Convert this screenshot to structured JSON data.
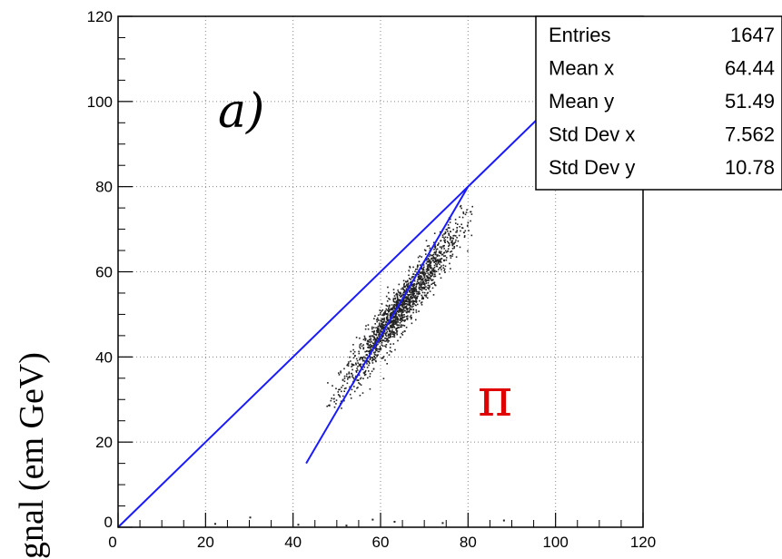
{
  "chart_data": {
    "type": "scatter",
    "title": "",
    "xlabel": "",
    "ylabel": "gnal (em GeV)",
    "xlim": [
      0,
      120
    ],
    "ylim": [
      0,
      120
    ],
    "x_ticks": [
      0,
      20,
      40,
      60,
      80,
      100,
      120
    ],
    "y_ticks": [
      0,
      20,
      40,
      60,
      80,
      100,
      120
    ],
    "grid": true,
    "panel_label": "a)",
    "particle_label": "π",
    "colors": {
      "lines": "#1a1aff",
      "points": "#222222",
      "particle": "#e00000"
    },
    "stats_box": [
      {
        "label": "Entries",
        "value": "1647"
      },
      {
        "label": "Mean x",
        "value": "64.44"
      },
      {
        "label": "Mean y",
        "value": "51.49"
      },
      {
        "label": "Std Dev x",
        "value": "7.562"
      },
      {
        "label": "Std Dev y",
        "value": "10.78"
      }
    ],
    "lines": [
      {
        "name": "",
        "points": [
          [
            0,
            0
          ],
          [
            120,
            120
          ]
        ]
      },
      {
        "name": "",
        "points": [
          [
            43,
            15
          ],
          [
            80,
            80
          ]
        ]
      }
    ],
    "scatter_summary": {
      "entries": 1647,
      "mean_x": 64.44,
      "mean_y": 51.49,
      "std_x": 7.562,
      "std_y": 10.78,
      "x_range": [
        47,
        81
      ],
      "y_range": [
        28,
        84
      ]
    }
  }
}
